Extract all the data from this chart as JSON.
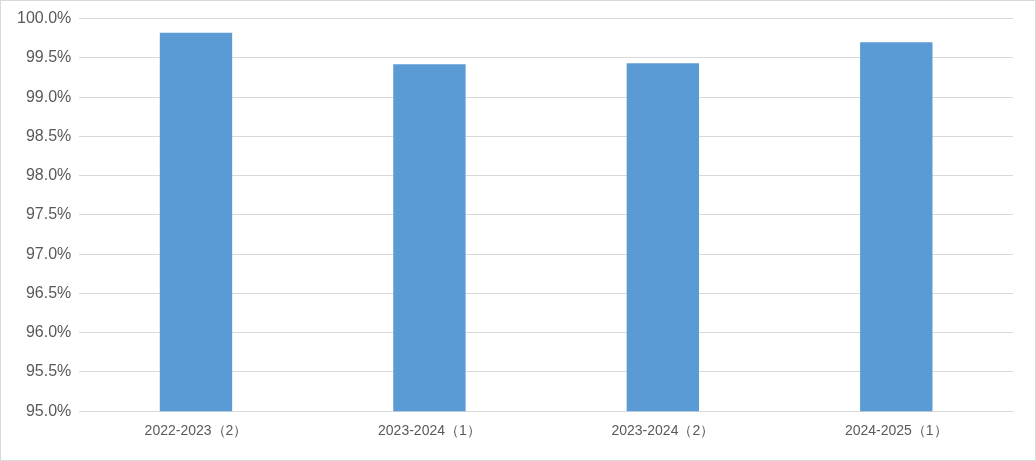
{
  "chart_data": {
    "type": "bar",
    "categories": [
      "2022-2023（2）",
      "2023-2024（1）",
      "2023-2024（2）",
      "2024-2025（1）"
    ],
    "values": [
      99.82,
      99.42,
      99.43,
      99.7
    ],
    "color": "#5b9bd5",
    "ylim": [
      95,
      100
    ],
    "yticks": [
      {
        "value": 95,
        "label": "95.0%"
      },
      {
        "value": 95.5,
        "label": "95.5%"
      },
      {
        "value": 96,
        "label": "96.0%"
      },
      {
        "value": 96.5,
        "label": "96.5%"
      },
      {
        "value": 97,
        "label": "97.0%"
      },
      {
        "value": 97.5,
        "label": "97.5%"
      },
      {
        "value": 98,
        "label": "98.0%"
      },
      {
        "value": 98.5,
        "label": "98.5%"
      },
      {
        "value": 99,
        "label": "99.0%"
      },
      {
        "value": 99.5,
        "label": "99.5%"
      },
      {
        "value": 100,
        "label": "100.0%"
      }
    ],
    "grid": "y",
    "legend": false
  }
}
